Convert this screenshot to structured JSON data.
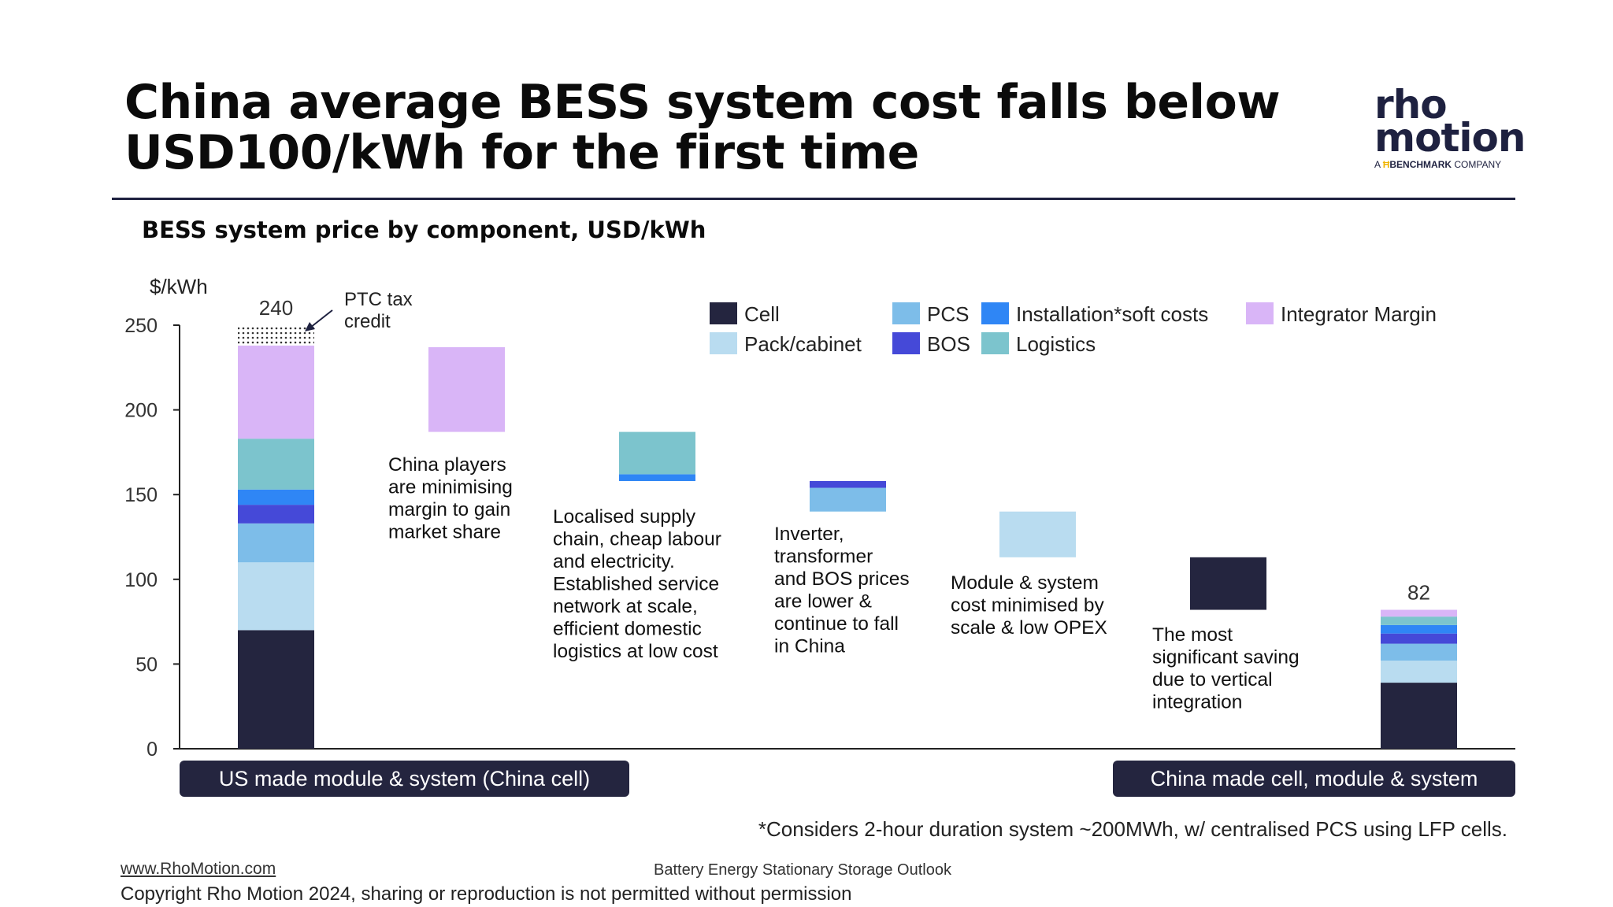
{
  "header": {
    "title_line1": "China average BESS system cost falls below",
    "title_line2": "USD100/kWh for the first time",
    "logo_word1": "rho",
    "logo_word2": "motion",
    "logo_sub_a": "A",
    "logo_sub_brand": "BENCHMARK",
    "logo_sub_company": "COMPANY"
  },
  "footer": {
    "footnote": "*Considers 2-hour duration system ~200MWh, w/ centralised PCS using LFP cells.",
    "url": "www.RhoMotion.com",
    "report": "Battery Energy Stationary Storage Outlook",
    "copyright": "Copyright Rho Motion 2024, sharing or reproduction is not permitted without permission"
  },
  "colors": {
    "Cell": "#24253f",
    "Pack/cabinet": "#b9dcf0",
    "PCS": "#7dbde9",
    "BOS": "#4549d8",
    "Installation*soft costs": "#2f86f5",
    "Logistics": "#7cc4cd",
    "Integrator Margin": "#d9b5f7"
  },
  "chart_data": {
    "type": "bar",
    "title": "BESS system price by component, USD/kWh",
    "ylabel": "$/kWh",
    "ylim": [
      0,
      250
    ],
    "yticks": [
      0,
      50,
      100,
      150,
      200,
      250
    ],
    "grid": false,
    "legend_position": "top",
    "legend": [
      "Cell",
      "Pack/cabinet",
      "PCS",
      "BOS",
      "Installation*soft costs",
      "Logistics",
      "Integrator Margin"
    ],
    "stacks": [
      {
        "category": "US made module & system (China cell)",
        "total_label": "240",
        "segments": [
          {
            "component": "Cell",
            "value": 70
          },
          {
            "component": "Pack/cabinet",
            "value": 40
          },
          {
            "component": "PCS",
            "value": 23
          },
          {
            "component": "BOS",
            "value": 11
          },
          {
            "component": "Installation*soft costs",
            "value": 9
          },
          {
            "component": "Logistics",
            "value": 30
          },
          {
            "component": "Integrator Margin",
            "value": 55
          }
        ],
        "tax_credit": {
          "from": 238,
          "to": 250,
          "label_line1": "PTC tax",
          "label_line2": "credit"
        }
      },
      {
        "category": "China made cell, module & system",
        "total_label": "82",
        "segments": [
          {
            "component": "Cell",
            "value": 39
          },
          {
            "component": "Pack/cabinet",
            "value": 13
          },
          {
            "component": "PCS",
            "value": 10
          },
          {
            "component": "BOS",
            "value": 6
          },
          {
            "component": "Installation*soft costs",
            "value": 5
          },
          {
            "component": "Logistics",
            "value": 5
          },
          {
            "component": "Integrator Margin",
            "value": 4
          }
        ]
      }
    ],
    "waterfall": [
      {
        "segments": [
          {
            "component": "Integrator Margin",
            "from": 187,
            "to": 237
          }
        ],
        "annotation": [
          "China players",
          "are minimising",
          "margin to gain",
          "market share"
        ]
      },
      {
        "segments": [
          {
            "component": "Installation*soft costs",
            "from": 158,
            "to": 162
          },
          {
            "component": "Logistics",
            "from": 162,
            "to": 187
          }
        ],
        "annotation": [
          "Localised supply",
          "chain, cheap labour",
          "and electricity.",
          "Established service",
          "network at scale,",
          "efficient domestic",
          "logistics at low cost"
        ]
      },
      {
        "segments": [
          {
            "component": "PCS",
            "from": 140,
            "to": 154
          },
          {
            "component": "BOS",
            "from": 154,
            "to": 158
          }
        ],
        "annotation": [
          "Inverter,",
          "transformer",
          "and BOS prices",
          "are lower &",
          "continue to fall",
          "in China"
        ]
      },
      {
        "segments": [
          {
            "component": "Pack/cabinet",
            "from": 113,
            "to": 140
          }
        ],
        "annotation": [
          "Module & system",
          "cost minimised by",
          "scale & low OPEX"
        ]
      },
      {
        "segments": [
          {
            "component": "Cell",
            "from": 82,
            "to": 113
          }
        ],
        "annotation": [
          "The most",
          "significant saving",
          "due to vertical",
          "integration"
        ]
      }
    ]
  }
}
